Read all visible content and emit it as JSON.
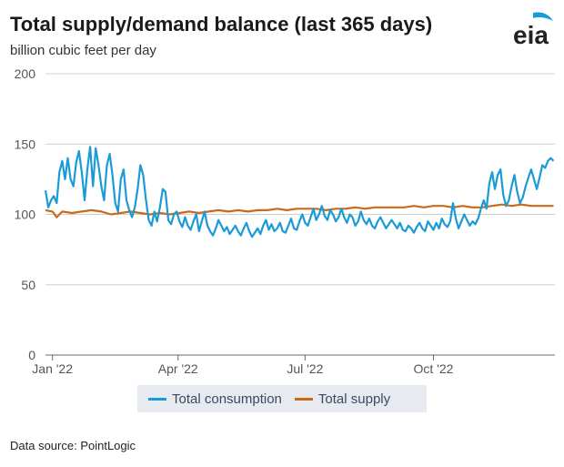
{
  "header": {
    "title": "Total supply/demand balance (last 365 days)",
    "subtitle": "billion cubic feet per day",
    "logo_text": "eia"
  },
  "footer": {
    "source": "Data source: PointLogic"
  },
  "colors": {
    "consumption": "#1a9bd7",
    "supply": "#c8691c",
    "logo_leaf": "#1a9bd7"
  },
  "chart_data": {
    "type": "line",
    "title": "Total supply/demand balance (last 365 days)",
    "ylabel": "billion cubic feet per day",
    "ylim": [
      0,
      200
    ],
    "yticks": [
      "0",
      "50",
      "100",
      "150",
      "200"
    ],
    "xtick_labels": [
      "Jan '22",
      "Apr '22",
      "Jul '22",
      "Oct '22"
    ],
    "xticks": [
      "2022-01-01",
      "2022-04-01",
      "2022-07-01",
      "2022-10-01"
    ],
    "xlim": [
      "2021-12-27",
      "2022-12-27"
    ],
    "grid": "horizontal",
    "legend": "bottom",
    "series": [
      {
        "name": "Total consumption",
        "color": "#1a9bd7",
        "points": [
          [
            "2021-12-27",
            117
          ],
          [
            "2021-12-29",
            105
          ],
          [
            "2021-12-31",
            110
          ],
          [
            "2022-01-02",
            113
          ],
          [
            "2022-01-04",
            108
          ],
          [
            "2022-01-06",
            130
          ],
          [
            "2022-01-08",
            138
          ],
          [
            "2022-01-10",
            125
          ],
          [
            "2022-01-12",
            140
          ],
          [
            "2022-01-14",
            125
          ],
          [
            "2022-01-16",
            120
          ],
          [
            "2022-01-18",
            137
          ],
          [
            "2022-01-20",
            145
          ],
          [
            "2022-01-22",
            130
          ],
          [
            "2022-01-24",
            110
          ],
          [
            "2022-01-26",
            132
          ],
          [
            "2022-01-28",
            148
          ],
          [
            "2022-01-30",
            120
          ],
          [
            "2022-02-01",
            147
          ],
          [
            "2022-02-03",
            135
          ],
          [
            "2022-02-05",
            120
          ],
          [
            "2022-02-07",
            110
          ],
          [
            "2022-02-09",
            135
          ],
          [
            "2022-02-11",
            143
          ],
          [
            "2022-02-13",
            128
          ],
          [
            "2022-02-15",
            108
          ],
          [
            "2022-02-17",
            102
          ],
          [
            "2022-02-19",
            125
          ],
          [
            "2022-02-21",
            132
          ],
          [
            "2022-02-23",
            110
          ],
          [
            "2022-02-25",
            103
          ],
          [
            "2022-02-27",
            98
          ],
          [
            "2022-03-01",
            105
          ],
          [
            "2022-03-03",
            118
          ],
          [
            "2022-03-05",
            135
          ],
          [
            "2022-03-07",
            128
          ],
          [
            "2022-03-09",
            110
          ],
          [
            "2022-03-11",
            96
          ],
          [
            "2022-03-13",
            92
          ],
          [
            "2022-03-15",
            102
          ],
          [
            "2022-03-17",
            95
          ],
          [
            "2022-03-19",
            105
          ],
          [
            "2022-03-21",
            118
          ],
          [
            "2022-03-23",
            116
          ],
          [
            "2022-03-25",
            96
          ],
          [
            "2022-03-27",
            93
          ],
          [
            "2022-03-29",
            100
          ],
          [
            "2022-03-31",
            102
          ],
          [
            "2022-04-02",
            95
          ],
          [
            "2022-04-04",
            91
          ],
          [
            "2022-04-06",
            98
          ],
          [
            "2022-04-08",
            92
          ],
          [
            "2022-04-10",
            89
          ],
          [
            "2022-04-12",
            95
          ],
          [
            "2022-04-14",
            100
          ],
          [
            "2022-04-16",
            88
          ],
          [
            "2022-04-18",
            95
          ],
          [
            "2022-04-20",
            102
          ],
          [
            "2022-04-22",
            92
          ],
          [
            "2022-04-24",
            88
          ],
          [
            "2022-04-26",
            85
          ],
          [
            "2022-04-28",
            90
          ],
          [
            "2022-04-30",
            96
          ],
          [
            "2022-05-02",
            92
          ],
          [
            "2022-05-04",
            88
          ],
          [
            "2022-05-06",
            91
          ],
          [
            "2022-05-08",
            86
          ],
          [
            "2022-05-10",
            89
          ],
          [
            "2022-05-12",
            92
          ],
          [
            "2022-05-14",
            88
          ],
          [
            "2022-05-16",
            85
          ],
          [
            "2022-05-18",
            90
          ],
          [
            "2022-05-20",
            94
          ],
          [
            "2022-05-22",
            88
          ],
          [
            "2022-05-24",
            84
          ],
          [
            "2022-05-26",
            87
          ],
          [
            "2022-05-28",
            90
          ],
          [
            "2022-05-30",
            86
          ],
          [
            "2022-06-01",
            92
          ],
          [
            "2022-06-03",
            96
          ],
          [
            "2022-06-05",
            89
          ],
          [
            "2022-06-07",
            93
          ],
          [
            "2022-06-09",
            88
          ],
          [
            "2022-06-11",
            90
          ],
          [
            "2022-06-13",
            94
          ],
          [
            "2022-06-15",
            88
          ],
          [
            "2022-06-17",
            87
          ],
          [
            "2022-06-19",
            92
          ],
          [
            "2022-06-21",
            97
          ],
          [
            "2022-06-23",
            90
          ],
          [
            "2022-06-25",
            89
          ],
          [
            "2022-06-27",
            95
          ],
          [
            "2022-06-29",
            100
          ],
          [
            "2022-07-01",
            94
          ],
          [
            "2022-07-03",
            92
          ],
          [
            "2022-07-05",
            98
          ],
          [
            "2022-07-07",
            104
          ],
          [
            "2022-07-09",
            96
          ],
          [
            "2022-07-11",
            100
          ],
          [
            "2022-07-13",
            106
          ],
          [
            "2022-07-15",
            99
          ],
          [
            "2022-07-17",
            96
          ],
          [
            "2022-07-19",
            103
          ],
          [
            "2022-07-21",
            100
          ],
          [
            "2022-07-23",
            95
          ],
          [
            "2022-07-25",
            98
          ],
          [
            "2022-07-27",
            104
          ],
          [
            "2022-07-29",
            98
          ],
          [
            "2022-07-31",
            94
          ],
          [
            "2022-08-02",
            100
          ],
          [
            "2022-08-04",
            98
          ],
          [
            "2022-08-06",
            92
          ],
          [
            "2022-08-08",
            95
          ],
          [
            "2022-08-10",
            102
          ],
          [
            "2022-08-12",
            96
          ],
          [
            "2022-08-14",
            93
          ],
          [
            "2022-08-16",
            97
          ],
          [
            "2022-08-18",
            92
          ],
          [
            "2022-08-20",
            90
          ],
          [
            "2022-08-22",
            95
          ],
          [
            "2022-08-24",
            98
          ],
          [
            "2022-08-26",
            94
          ],
          [
            "2022-08-28",
            90
          ],
          [
            "2022-08-30",
            93
          ],
          [
            "2022-09-01",
            96
          ],
          [
            "2022-09-03",
            93
          ],
          [
            "2022-09-05",
            90
          ],
          [
            "2022-09-07",
            94
          ],
          [
            "2022-09-09",
            89
          ],
          [
            "2022-09-11",
            88
          ],
          [
            "2022-09-13",
            92
          ],
          [
            "2022-09-15",
            90
          ],
          [
            "2022-09-17",
            87
          ],
          [
            "2022-09-19",
            91
          ],
          [
            "2022-09-21",
            94
          ],
          [
            "2022-09-23",
            90
          ],
          [
            "2022-09-25",
            88
          ],
          [
            "2022-09-27",
            95
          ],
          [
            "2022-09-29",
            92
          ],
          [
            "2022-10-01",
            89
          ],
          [
            "2022-10-03",
            94
          ],
          [
            "2022-10-05",
            90
          ],
          [
            "2022-10-07",
            97
          ],
          [
            "2022-10-09",
            93
          ],
          [
            "2022-10-11",
            91
          ],
          [
            "2022-10-13",
            95
          ],
          [
            "2022-10-15",
            108
          ],
          [
            "2022-10-17",
            97
          ],
          [
            "2022-10-19",
            90
          ],
          [
            "2022-10-21",
            95
          ],
          [
            "2022-10-23",
            100
          ],
          [
            "2022-10-25",
            96
          ],
          [
            "2022-10-27",
            92
          ],
          [
            "2022-10-29",
            95
          ],
          [
            "2022-10-31",
            93
          ],
          [
            "2022-11-02",
            97
          ],
          [
            "2022-11-04",
            104
          ],
          [
            "2022-11-06",
            110
          ],
          [
            "2022-11-08",
            104
          ],
          [
            "2022-11-10",
            122
          ],
          [
            "2022-11-12",
            130
          ],
          [
            "2022-11-14",
            118
          ],
          [
            "2022-11-16",
            128
          ],
          [
            "2022-11-18",
            132
          ],
          [
            "2022-11-20",
            114
          ],
          [
            "2022-11-22",
            106
          ],
          [
            "2022-11-24",
            110
          ],
          [
            "2022-11-26",
            120
          ],
          [
            "2022-11-28",
            128
          ],
          [
            "2022-11-30",
            116
          ],
          [
            "2022-12-02",
            108
          ],
          [
            "2022-12-04",
            112
          ],
          [
            "2022-12-06",
            120
          ],
          [
            "2022-12-08",
            126
          ],
          [
            "2022-12-10",
            132
          ],
          [
            "2022-12-12",
            125
          ],
          [
            "2022-12-14",
            118
          ],
          [
            "2022-12-16",
            126
          ],
          [
            "2022-12-18",
            135
          ],
          [
            "2022-12-20",
            133
          ],
          [
            "2022-12-22",
            138
          ],
          [
            "2022-12-24",
            140
          ],
          [
            "2022-12-26",
            138
          ]
        ]
      },
      {
        "name": "Total supply",
        "color": "#c8691c",
        "points": [
          [
            "2021-12-27",
            103
          ],
          [
            "2022-01-01",
            102
          ],
          [
            "2022-01-04",
            98
          ],
          [
            "2022-01-08",
            102
          ],
          [
            "2022-01-15",
            101
          ],
          [
            "2022-01-22",
            102
          ],
          [
            "2022-01-29",
            103
          ],
          [
            "2022-02-05",
            102
          ],
          [
            "2022-02-12",
            100
          ],
          [
            "2022-02-19",
            101
          ],
          [
            "2022-02-26",
            102
          ],
          [
            "2022-03-05",
            101
          ],
          [
            "2022-03-12",
            100
          ],
          [
            "2022-03-19",
            101
          ],
          [
            "2022-03-26",
            100
          ],
          [
            "2022-04-02",
            101
          ],
          [
            "2022-04-09",
            102
          ],
          [
            "2022-04-16",
            101
          ],
          [
            "2022-04-23",
            102
          ],
          [
            "2022-04-30",
            103
          ],
          [
            "2022-05-07",
            102
          ],
          [
            "2022-05-14",
            103
          ],
          [
            "2022-05-21",
            102
          ],
          [
            "2022-05-28",
            103
          ],
          [
            "2022-06-04",
            103
          ],
          [
            "2022-06-11",
            104
          ],
          [
            "2022-06-18",
            103
          ],
          [
            "2022-06-25",
            104
          ],
          [
            "2022-07-02",
            104
          ],
          [
            "2022-07-09",
            104
          ],
          [
            "2022-07-16",
            103
          ],
          [
            "2022-07-23",
            104
          ],
          [
            "2022-07-30",
            104
          ],
          [
            "2022-08-06",
            105
          ],
          [
            "2022-08-13",
            104
          ],
          [
            "2022-08-20",
            105
          ],
          [
            "2022-08-27",
            105
          ],
          [
            "2022-09-03",
            105
          ],
          [
            "2022-09-10",
            105
          ],
          [
            "2022-09-17",
            106
          ],
          [
            "2022-09-24",
            105
          ],
          [
            "2022-10-01",
            106
          ],
          [
            "2022-10-08",
            106
          ],
          [
            "2022-10-15",
            105
          ],
          [
            "2022-10-22",
            106
          ],
          [
            "2022-10-29",
            105
          ],
          [
            "2022-11-05",
            105
          ],
          [
            "2022-11-12",
            106
          ],
          [
            "2022-11-19",
            107
          ],
          [
            "2022-11-26",
            106
          ],
          [
            "2022-12-03",
            107
          ],
          [
            "2022-12-10",
            106
          ],
          [
            "2022-12-17",
            106
          ],
          [
            "2022-12-24",
            106
          ],
          [
            "2022-12-26",
            106
          ]
        ]
      }
    ]
  }
}
